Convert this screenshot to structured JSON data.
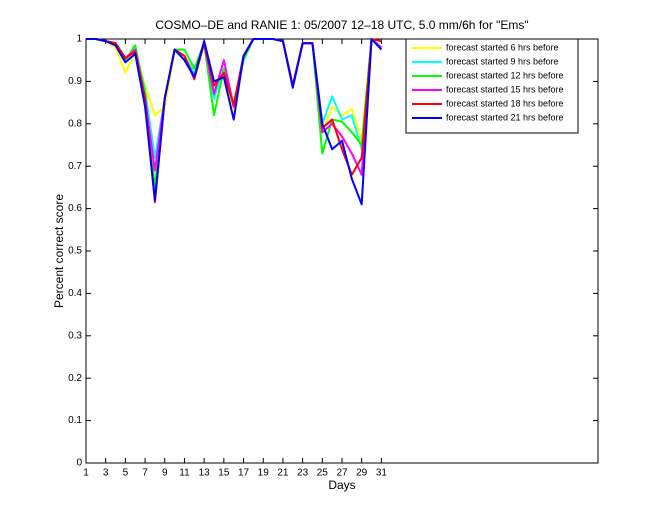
{
  "chart_data": {
    "type": "line",
    "title": "COSMO–DE and RANIE 1: 05/2007 12–18 UTC, 5.0 mm/6h for \"Ems\"",
    "xlabel": "Days",
    "ylabel": "Percent correct score",
    "x": [
      1,
      2,
      3,
      4,
      5,
      6,
      7,
      8,
      9,
      10,
      11,
      12,
      13,
      14,
      15,
      16,
      17,
      18,
      19,
      20,
      21,
      22,
      23,
      24,
      25,
      26,
      27,
      28,
      29,
      30,
      31
    ],
    "xlim": [
      1,
      53
    ],
    "xticks": [
      1,
      3,
      5,
      7,
      9,
      11,
      13,
      15,
      17,
      19,
      21,
      23,
      25,
      27,
      29,
      31
    ],
    "ylim": [
      0,
      1
    ],
    "yticks": [
      0,
      0.1,
      0.2,
      0.3,
      0.4,
      0.5,
      0.6,
      0.7,
      0.8,
      0.9,
      1
    ],
    "grid": false,
    "legend": "upper right",
    "series": [
      {
        "name": "forecast started 6 hrs before",
        "color": "#ffff00",
        "values": [
          1,
          1,
          0.995,
          0.98,
          0.92,
          0.97,
          0.89,
          0.82,
          0.84,
          0.97,
          0.96,
          0.92,
          0.99,
          0.88,
          0.91,
          0.83,
          0.96,
          1,
          1,
          1,
          0.995,
          0.89,
          0.99,
          0.99,
          0.78,
          0.84,
          0.82,
          0.835,
          0.76,
          1,
          0.98
        ]
      },
      {
        "name": "forecast started 9 hrs before",
        "color": "#00ffff",
        "values": [
          1,
          1,
          0.995,
          0.99,
          0.95,
          0.975,
          0.88,
          0.72,
          0.86,
          0.975,
          0.96,
          0.92,
          0.99,
          0.86,
          0.93,
          0.84,
          0.96,
          1,
          1,
          1,
          0.995,
          0.89,
          0.99,
          0.99,
          0.8,
          0.865,
          0.81,
          0.82,
          0.74,
          1,
          0.98
        ]
      },
      {
        "name": "forecast started 12 hrs before",
        "color": "#00ff00",
        "values": [
          1,
          1,
          0.995,
          0.99,
          0.95,
          0.985,
          0.87,
          0.65,
          0.86,
          0.975,
          0.975,
          0.93,
          0.99,
          0.82,
          0.93,
          0.84,
          0.95,
          1,
          1,
          1,
          0.995,
          0.89,
          0.99,
          0.99,
          0.73,
          0.81,
          0.805,
          0.78,
          0.75,
          1,
          0.98
        ]
      },
      {
        "name": "forecast started 15 hrs before",
        "color": "#ff00ff",
        "values": [
          1,
          1,
          0.995,
          0.99,
          0.955,
          0.975,
          0.86,
          0.69,
          0.86,
          0.975,
          0.96,
          0.91,
          0.99,
          0.87,
          0.95,
          0.84,
          0.96,
          1,
          1,
          1,
          0.995,
          0.89,
          0.99,
          0.99,
          0.78,
          0.8,
          0.77,
          0.73,
          0.68,
          1,
          0.98
        ]
      },
      {
        "name": "forecast started 18 hrs before",
        "color": "#ff0000",
        "values": [
          1,
          1,
          0.995,
          0.99,
          0.955,
          0.97,
          0.86,
          0.615,
          0.86,
          0.975,
          0.96,
          0.905,
          0.99,
          0.89,
          0.92,
          0.845,
          0.96,
          1,
          1,
          1,
          0.995,
          0.89,
          0.99,
          0.99,
          0.79,
          0.81,
          0.74,
          0.68,
          0.72,
          1,
          0.995
        ]
      },
      {
        "name": "forecast started 21 hrs before",
        "color": "#0000ff",
        "values": [
          1,
          1,
          0.995,
          0.985,
          0.945,
          0.965,
          0.84,
          0.62,
          0.86,
          0.975,
          0.95,
          0.91,
          0.995,
          0.9,
          0.91,
          0.81,
          0.96,
          1,
          1,
          1,
          0.995,
          0.885,
          0.99,
          0.99,
          0.8,
          0.74,
          0.76,
          0.67,
          0.61,
          1,
          0.975
        ]
      }
    ]
  }
}
